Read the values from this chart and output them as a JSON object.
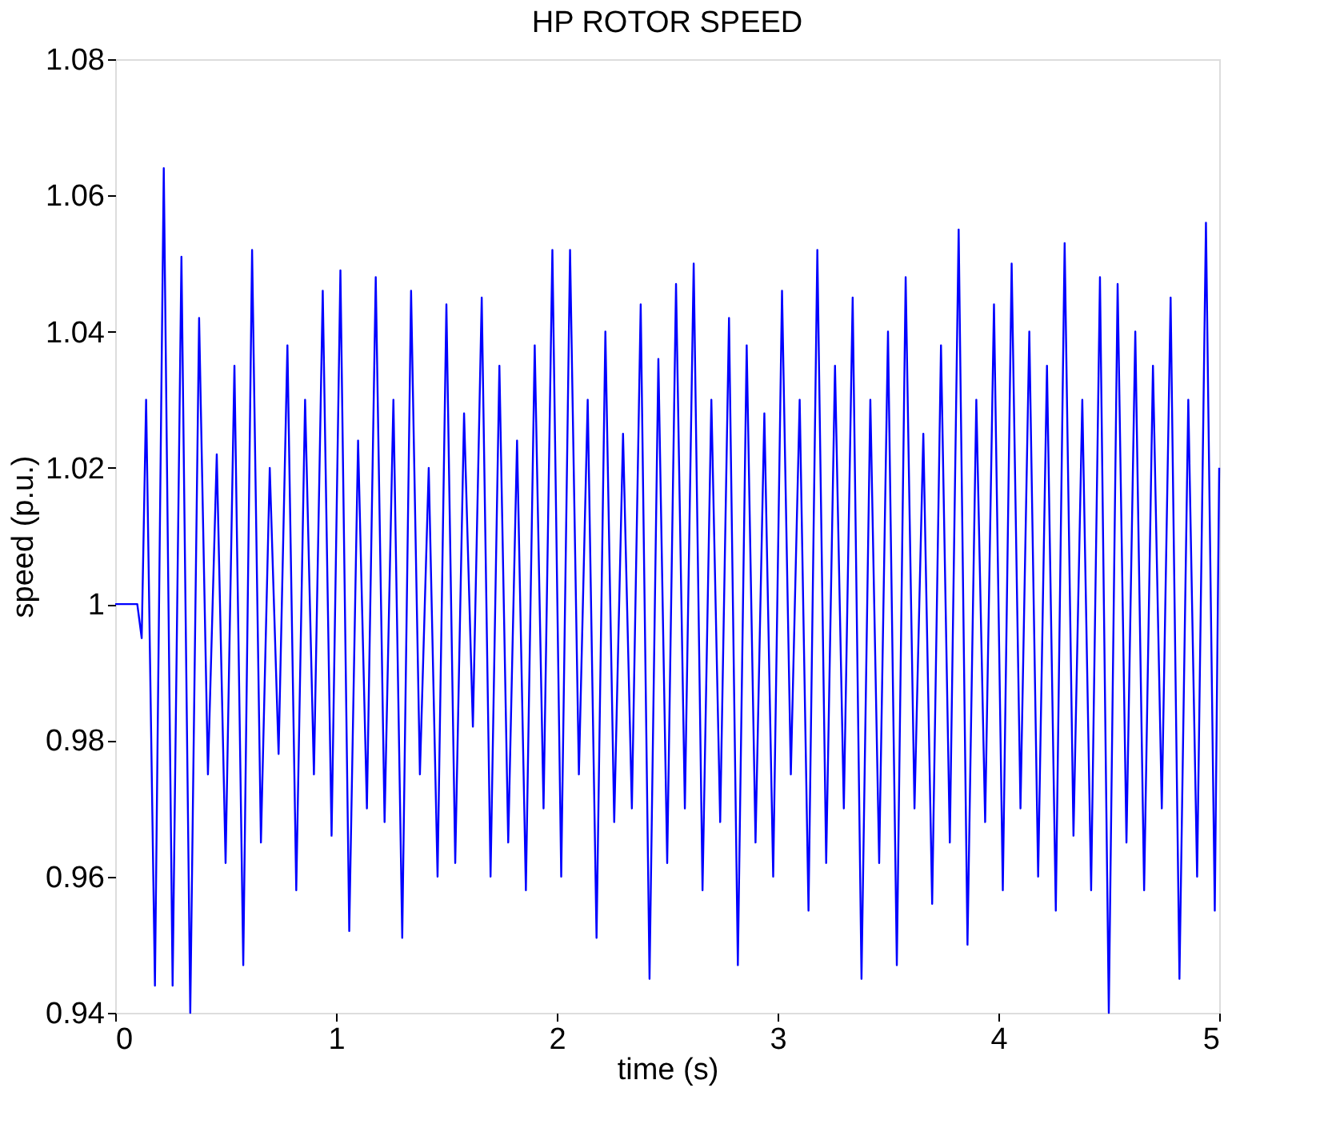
{
  "chart_data": {
    "type": "line",
    "title": "HP ROTOR SPEED",
    "xlabel": "time (s)",
    "ylabel": "speed (p.u.)",
    "xlim": [
      0,
      5
    ],
    "ylim": [
      0.94,
      1.08
    ],
    "xticks": [
      0,
      1,
      2,
      3,
      4,
      5
    ],
    "yticks": [
      0.94,
      0.96,
      0.98,
      1,
      1.02,
      1.04,
      1.06,
      1.08
    ],
    "grid": false,
    "marker": "none",
    "line_style": "solid",
    "series": [
      {
        "color": "#0000ff",
        "x": [
          0,
          0.1,
          0.12,
          0.14,
          0.18,
          0.22,
          0.26,
          0.3,
          0.34,
          0.38,
          0.42,
          0.46,
          0.5,
          0.54,
          0.58,
          0.62,
          0.66,
          0.7,
          0.74,
          0.78,
          0.82,
          0.86,
          0.9,
          0.94,
          0.98,
          1.02,
          1.06,
          1.1,
          1.14,
          1.18,
          1.22,
          1.26,
          1.3,
          1.34,
          1.38,
          1.42,
          1.46,
          1.5,
          1.54,
          1.58,
          1.62,
          1.66,
          1.7,
          1.74,
          1.78,
          1.82,
          1.86,
          1.9,
          1.94,
          1.98,
          2.02,
          2.06,
          2.1,
          2.14,
          2.18,
          2.22,
          2.26,
          2.3,
          2.34,
          2.38,
          2.42,
          2.46,
          2.5,
          2.54,
          2.58,
          2.62,
          2.66,
          2.7,
          2.74,
          2.78,
          2.82,
          2.86,
          2.9,
          2.94,
          2.98,
          3.02,
          3.06,
          3.1,
          3.14,
          3.18,
          3.22,
          3.26,
          3.3,
          3.34,
          3.38,
          3.42,
          3.46,
          3.5,
          3.54,
          3.58,
          3.62,
          3.66,
          3.7,
          3.74,
          3.78,
          3.82,
          3.86,
          3.9,
          3.94,
          3.98,
          4.02,
          4.06,
          4.1,
          4.14,
          4.18,
          4.22,
          4.26,
          4.3,
          4.34,
          4.38,
          4.42,
          4.46,
          4.5,
          4.54,
          4.58,
          4.62,
          4.66,
          4.7,
          4.74,
          4.78,
          4.82,
          4.86,
          4.9,
          4.94,
          4.98,
          5.0
        ],
        "values": [
          1,
          1,
          0.995,
          1.03,
          0.944,
          1.064,
          0.944,
          1.051,
          0.94,
          1.042,
          0.975,
          1.022,
          0.962,
          1.035,
          0.947,
          1.052,
          0.965,
          1.02,
          0.978,
          1.038,
          0.958,
          1.03,
          0.975,
          1.046,
          0.966,
          1.049,
          0.952,
          1.024,
          0.97,
          1.048,
          0.968,
          1.03,
          0.951,
          1.046,
          0.975,
          1.02,
          0.96,
          1.044,
          0.962,
          1.028,
          0.982,
          1.045,
          0.96,
          1.035,
          0.965,
          1.024,
          0.958,
          1.038,
          0.97,
          1.052,
          0.96,
          1.052,
          0.975,
          1.03,
          0.951,
          1.04,
          0.968,
          1.025,
          0.97,
          1.044,
          0.945,
          1.036,
          0.962,
          1.047,
          0.97,
          1.05,
          0.958,
          1.03,
          0.968,
          1.042,
          0.947,
          1.038,
          0.965,
          1.028,
          0.96,
          1.046,
          0.975,
          1.03,
          0.955,
          1.052,
          0.962,
          1.035,
          0.97,
          1.045,
          0.945,
          1.03,
          0.962,
          1.04,
          0.947,
          1.048,
          0.97,
          1.025,
          0.956,
          1.038,
          0.965,
          1.055,
          0.95,
          1.03,
          0.968,
          1.044,
          0.958,
          1.05,
          0.97,
          1.04,
          0.96,
          1.035,
          0.955,
          1.053,
          0.966,
          1.03,
          0.958,
          1.048,
          0.94,
          1.047,
          0.965,
          1.04,
          0.958,
          1.035,
          0.97,
          1.045,
          0.945,
          1.03,
          0.96,
          1.056,
          0.955,
          1.02
        ]
      }
    ]
  }
}
